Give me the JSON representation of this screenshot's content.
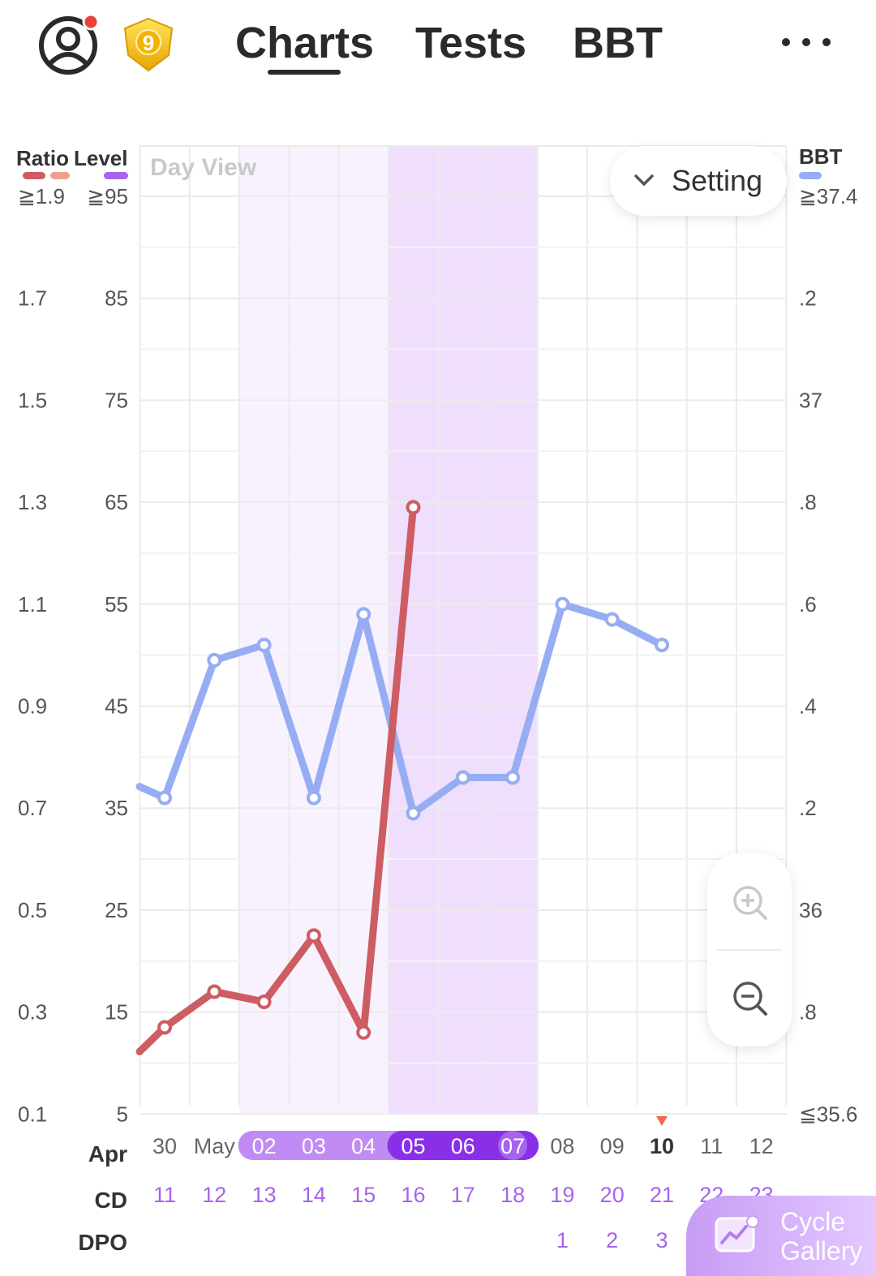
{
  "header": {
    "badge_number": "9",
    "tabs": [
      {
        "label": "Charts",
        "active": true
      },
      {
        "label": "Tests",
        "active": false
      },
      {
        "label": "BBT",
        "active": false
      }
    ]
  },
  "controls": {
    "day_view": "Day View",
    "setting": "Setting",
    "cycle_gallery_line1": "Cycle",
    "cycle_gallery_line2": "Gallery"
  },
  "chart_data": {
    "type": "line",
    "left_axis_headers": {
      "ratio": "Ratio",
      "level": "Level"
    },
    "right_axis_header": "BBT",
    "ratio_ticks": [
      "≧1.9",
      "1.7",
      "1.5",
      "1.3",
      "1.1",
      "0.9",
      "0.7",
      "0.5",
      "0.3",
      "0.1"
    ],
    "level_ticks": [
      "≧95",
      "85",
      "75",
      "65",
      "55",
      "45",
      "35",
      "25",
      "15",
      "5"
    ],
    "bbt_ticks": [
      "≧37.4",
      ".2",
      "37",
      ".8",
      ".6",
      ".4",
      ".2",
      "36",
      ".8",
      "≦35.6"
    ],
    "ratio_range": [
      0.1,
      1.9
    ],
    "level_range": [
      5,
      95
    ],
    "bbt_range": [
      35.6,
      37.4
    ],
    "dates": [
      "30",
      "May",
      "02",
      "03",
      "04",
      "05",
      "06",
      "07",
      "08",
      "09",
      "10",
      "11",
      "12"
    ],
    "month_label": "Apr",
    "today": "10",
    "cd_label": "CD",
    "cd": [
      "11",
      "12",
      "13",
      "14",
      "15",
      "16",
      "17",
      "18",
      "19",
      "20",
      "21",
      "22",
      "23"
    ],
    "dpo_label": "DPO",
    "dpo": [
      "",
      "",
      "",
      "",
      "",
      "",
      "",
      "",
      "1",
      "2",
      "3",
      "",
      ""
    ],
    "fertile_window": [
      "02",
      "07"
    ],
    "peak_window": [
      "05",
      "07"
    ],
    "series": [
      {
        "name": "Ratio",
        "color": "#cd5d63",
        "values": [
          0.27,
          0.34,
          0.32,
          0.45,
          0.26,
          1.29,
          null,
          null,
          null,
          null,
          null,
          null,
          null
        ]
      },
      {
        "name": "BBT",
        "color": "#97adf3",
        "values": [
          36.22,
          36.49,
          36.52,
          36.22,
          36.58,
          36.19,
          36.26,
          36.26,
          36.6,
          36.57,
          36.52,
          null,
          null
        ]
      }
    ],
    "grid": true
  }
}
